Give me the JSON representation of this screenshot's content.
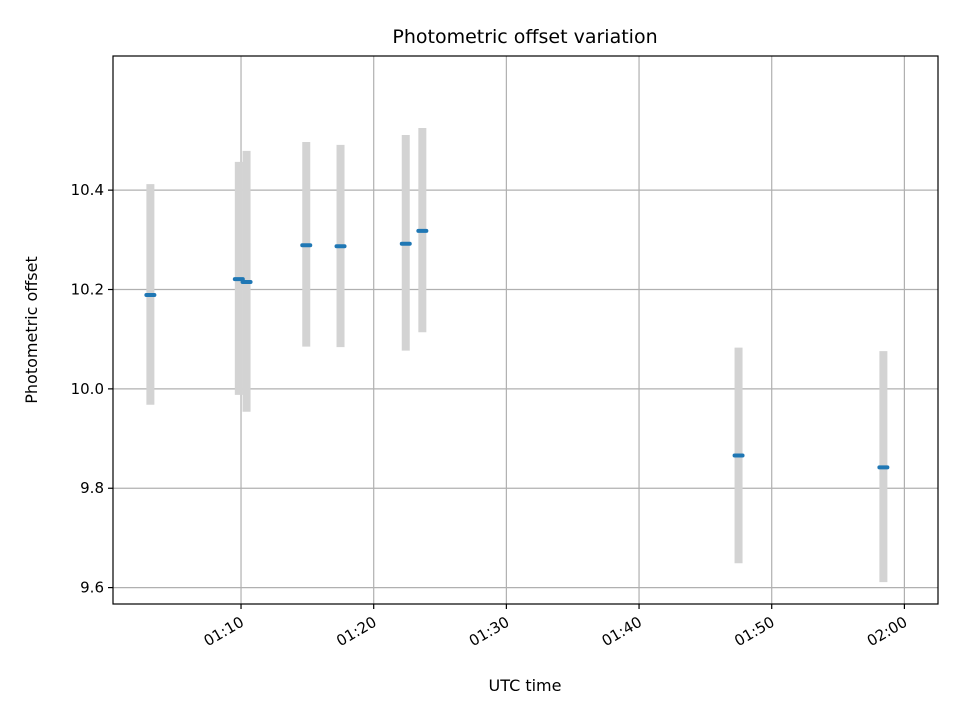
{
  "chart_data": {
    "type": "scatter",
    "title": "Photometric offset variation",
    "xlabel": "UTC time",
    "ylabel": "Photometric offset",
    "x_ticks": [
      "01:10",
      "01:20",
      "01:30",
      "01:40",
      "01:50",
      "02:00"
    ],
    "y_ticks": [
      "9.6",
      "9.8",
      "10.0",
      "10.2",
      "10.4"
    ],
    "xlim": [
      "01:00:21",
      "02:02:32"
    ],
    "ylim": [
      9.567,
      10.67
    ],
    "grid": true,
    "errorbar_color": "#d3d3d3",
    "marker_color": "#1f77b4",
    "points": [
      {
        "time": "01:03:10",
        "y": 10.189,
        "ylow": 9.968,
        "yhigh": 10.412
      },
      {
        "time": "01:09:50",
        "y": 10.221,
        "ylow": 9.988,
        "yhigh": 10.457
      },
      {
        "time": "01:10:25",
        "y": 10.215,
        "ylow": 9.954,
        "yhigh": 10.479
      },
      {
        "time": "01:14:55",
        "y": 10.289,
        "ylow": 10.085,
        "yhigh": 10.497
      },
      {
        "time": "01:17:30",
        "y": 10.287,
        "ylow": 10.084,
        "yhigh": 10.491
      },
      {
        "time": "01:22:25",
        "y": 10.292,
        "ylow": 10.077,
        "yhigh": 10.511
      },
      {
        "time": "01:23:40",
        "y": 10.318,
        "ylow": 10.114,
        "yhigh": 10.525
      },
      {
        "time": "01:47:30",
        "y": 9.866,
        "ylow": 9.649,
        "yhigh": 10.083
      },
      {
        "time": "01:58:25",
        "y": 9.842,
        "ylow": 9.611,
        "yhigh": 10.076
      }
    ]
  }
}
